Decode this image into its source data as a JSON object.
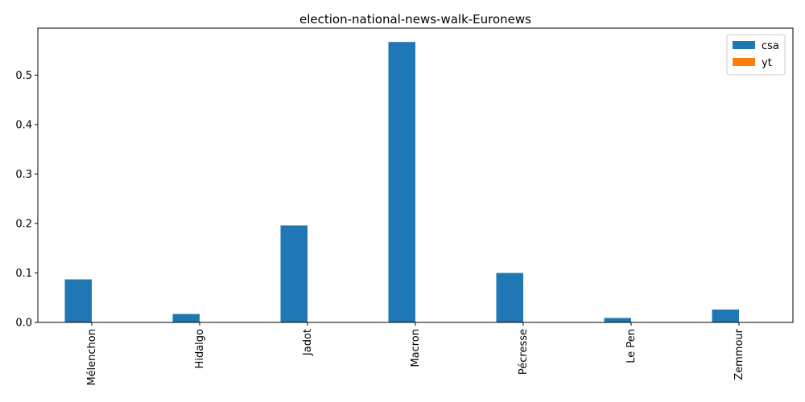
{
  "chart_data": {
    "type": "bar",
    "title": "election-national-news-walk-Euronews",
    "xlabel": "",
    "ylabel": "",
    "categories": [
      "Mélenchon",
      "Hidalgo",
      "Jadot",
      "Macron",
      "Pécresse",
      "Le Pen",
      "Zemmour"
    ],
    "series": [
      {
        "name": "csa",
        "color": "#1f77b4",
        "values": [
          0.087,
          0.017,
          0.196,
          0.567,
          0.1,
          0.009,
          0.026
        ]
      },
      {
        "name": "yt",
        "color": "#ff7f0e",
        "values": [
          0,
          0,
          0,
          0,
          0,
          0,
          0
        ]
      }
    ],
    "ylim": [
      0,
      0.595
    ],
    "yticks": [
      {
        "value": 0.0,
        "label": "0.0"
      },
      {
        "value": 0.1,
        "label": "0.1"
      },
      {
        "value": 0.2,
        "label": "0.2"
      },
      {
        "value": 0.3,
        "label": "0.3"
      },
      {
        "value": 0.4,
        "label": "0.4"
      },
      {
        "value": 0.5,
        "label": "0.5"
      }
    ],
    "legend_position": "top-right",
    "grid": false
  }
}
